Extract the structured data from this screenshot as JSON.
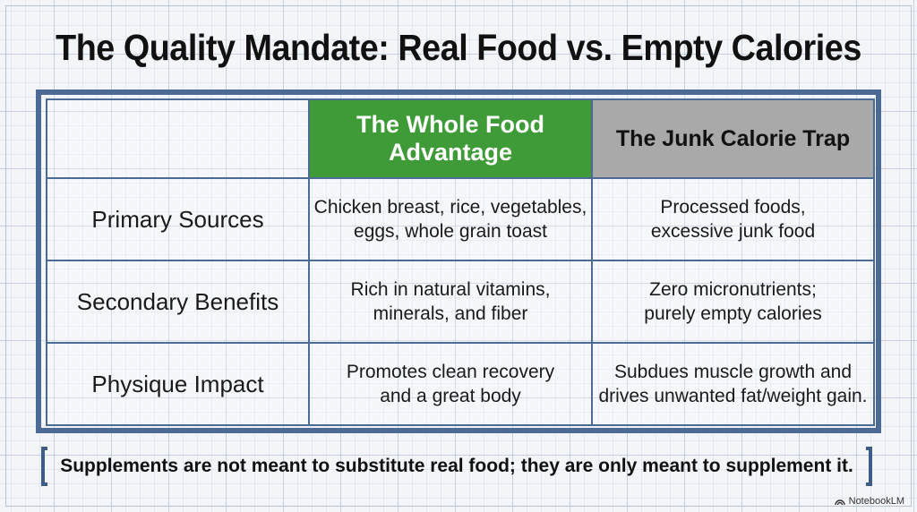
{
  "title": "The Quality Mandate: Real Food vs. Empty Calories",
  "table": {
    "headers": {
      "corner": "",
      "column_a": [
        "The Whole Food",
        "Advantage"
      ],
      "column_b": "The Junk Calorie Trap"
    },
    "rows": [
      {
        "label": "Primary Sources",
        "column_a": [
          "Chicken breast, rice, vegetables,",
          "eggs, whole grain toast"
        ],
        "column_b": [
          "Processed foods,",
          "excessive junk food"
        ]
      },
      {
        "label": "Secondary Benefits",
        "column_a": [
          "Rich in natural vitamins,",
          "minerals, and fiber"
        ],
        "column_b": [
          "Zero micronutrients;",
          "purely empty calories"
        ]
      },
      {
        "label": "Physique Impact",
        "column_a": [
          "Promotes clean recovery",
          "and a great body"
        ],
        "column_b": [
          "Subdues muscle growth and",
          "drives unwanted fat/weight gain."
        ]
      }
    ]
  },
  "footer": {
    "note": "Supplements are not meant to substitute real food; they are only meant to supplement it."
  },
  "watermark": {
    "label": "NotebookLM",
    "icon": "notebooklm-logo-icon"
  },
  "colors": {
    "accent_green": "#3f9b38",
    "neutral_gray": "#a9a9a9",
    "frame_blue": "#4b6b95"
  }
}
